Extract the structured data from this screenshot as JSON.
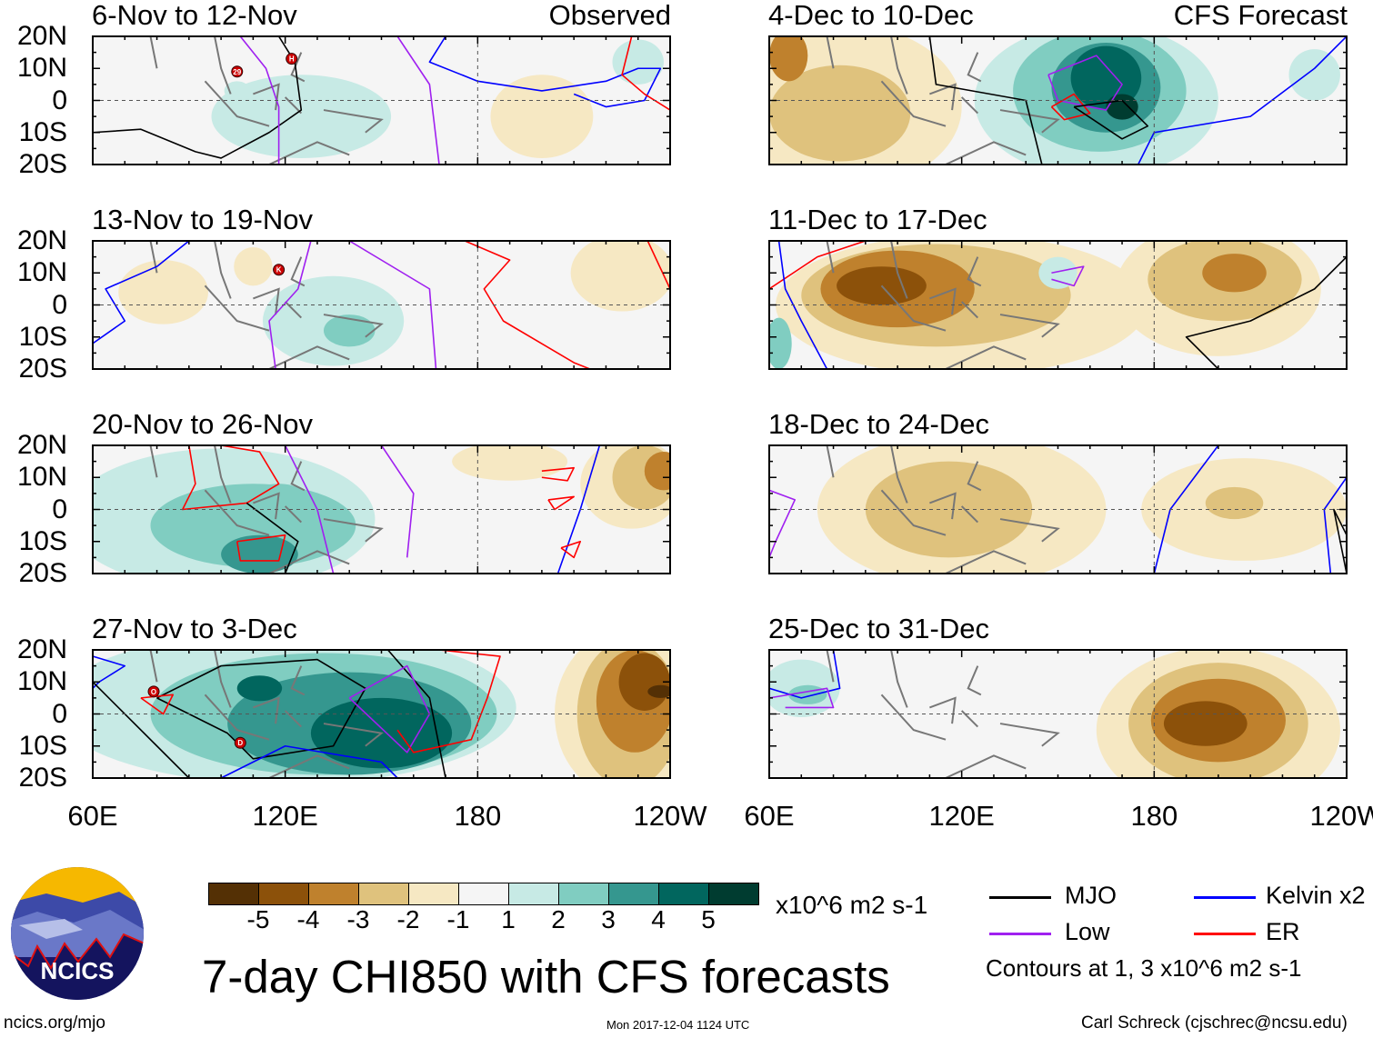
{
  "panels": [
    {
      "title": "6-Nov to 12-Nov",
      "label": "Observed",
      "storms": [
        {
          "name": "29",
          "lon": 105,
          "lat": 9
        },
        {
          "name": "H",
          "lon": 122,
          "lat": 13
        }
      ]
    },
    {
      "title": "13-Nov to 19-Nov",
      "label": "",
      "storms": [
        {
          "name": "K",
          "lon": 118,
          "lat": 11
        }
      ]
    },
    {
      "title": "20-Nov to 26-Nov",
      "label": "",
      "storms": []
    },
    {
      "title": "27-Nov to 3-Dec",
      "label": "",
      "storms": [
        {
          "name": "O",
          "lon": 79,
          "lat": 7
        },
        {
          "name": "D",
          "lon": 106,
          "lat": -9
        }
      ]
    },
    {
      "title": "4-Dec to 10-Dec",
      "label": "CFS Forecast",
      "storms": []
    },
    {
      "title": "11-Dec to 17-Dec",
      "label": "",
      "storms": []
    },
    {
      "title": "18-Dec to 24-Dec",
      "label": "",
      "storms": []
    },
    {
      "title": "25-Dec to 31-Dec",
      "label": "",
      "storms": []
    }
  ],
  "axes": {
    "lat_labels": [
      "20N",
      "10N",
      "0",
      "10S",
      "20S"
    ],
    "lon_labels": [
      "60E",
      "120E",
      "180",
      "120W"
    ],
    "lon_range": [
      60,
      240
    ],
    "lat_range": [
      -20,
      20
    ]
  },
  "colorbar": {
    "colors": [
      "#543005",
      "#8c510a",
      "#bf812d",
      "#dfc27d",
      "#f6e8c3",
      "#f5f5f5",
      "#c7eae5",
      "#80cdc1",
      "#35978f",
      "#01665e",
      "#003c30"
    ],
    "labels": [
      "-5",
      "-4",
      "-3",
      "-2",
      "-1",
      "1",
      "2",
      "3",
      "4",
      "5"
    ],
    "units": "x10^6 m2 s-1"
  },
  "title": "7-day CHI850 with CFS forecasts",
  "legend": {
    "items": [
      {
        "label": "MJO",
        "color": "#000000"
      },
      {
        "label": "Kelvin x2",
        "color": "#0000ff"
      },
      {
        "label": "Low",
        "color": "#a020f0"
      },
      {
        "label": "ER",
        "color": "#ff0000"
      }
    ],
    "note": "Contours at 1, 3 x10^6 m2 s-1"
  },
  "logo": {
    "text": "NCICS"
  },
  "footer": {
    "url": "ncics.org/mjo",
    "timestamp": "Mon 2017-12-04 1124 UTC",
    "author": "Carl Schreck (cjschrec@ncsu.edu)"
  }
}
